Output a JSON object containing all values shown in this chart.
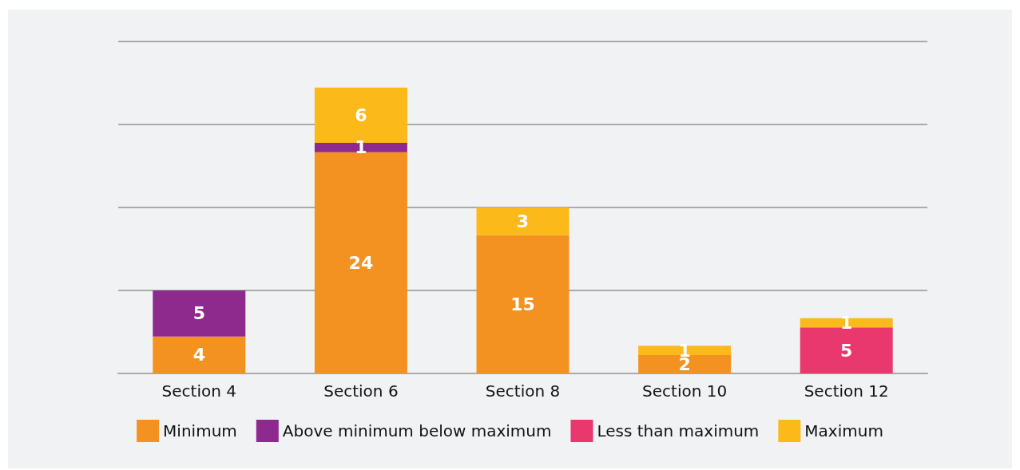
{
  "chart_data": {
    "type": "bar",
    "stacked": true,
    "categories": [
      "Section 4",
      "Section 6",
      "Section 8",
      "Section 10",
      "Section 12"
    ],
    "series": [
      {
        "name": "Minimum",
        "color": "#f39220",
        "values": [
          4,
          24,
          15,
          2,
          null
        ]
      },
      {
        "name": "Above minimum below maximum",
        "color": "#8e2a8e",
        "values": [
          5,
          1,
          null,
          null,
          null
        ]
      },
      {
        "name": "Less than maximum",
        "color": "#e8386d",
        "values": [
          null,
          null,
          null,
          null,
          5
        ]
      },
      {
        "name": "Maximum",
        "color": "#fbb91a",
        "values": [
          null,
          6,
          3,
          1,
          1
        ]
      }
    ],
    "ylim": [
      0,
      36
    ],
    "yticks": [
      {
        "value": 0,
        "label": null
      },
      {
        "value": 9,
        "label": null
      },
      {
        "value": 18,
        "label": null
      },
      {
        "value": 27,
        "label": null
      },
      {
        "value": 36,
        "label": null
      }
    ],
    "grid": "y",
    "legend": "bottom",
    "data_labels": true,
    "tick_labels": "x"
  }
}
